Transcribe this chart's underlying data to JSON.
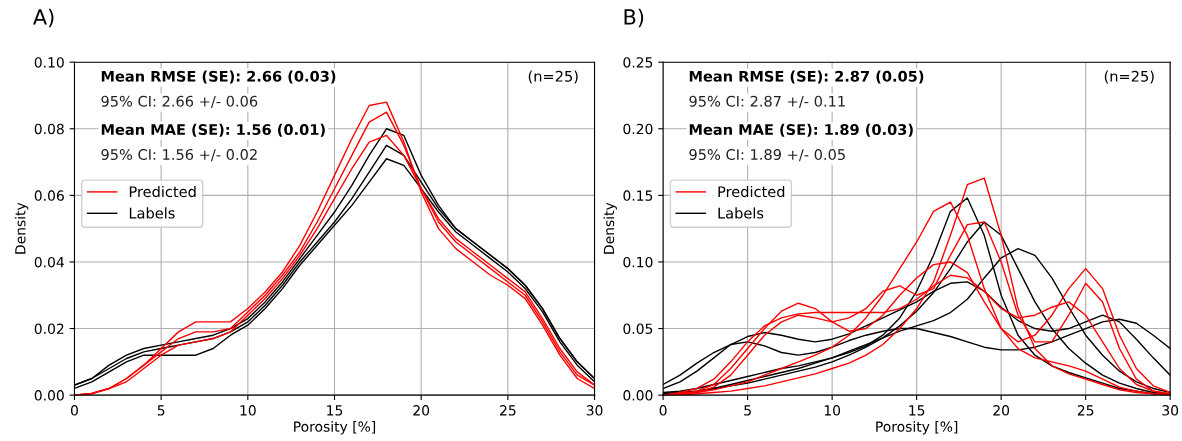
{
  "chart_data": [
    {
      "type": "line",
      "title": "A)",
      "xlabel": "Porosity [%]",
      "ylabel": "Density",
      "xlim": [
        0,
        30
      ],
      "ylim": [
        0,
        0.1
      ],
      "xticks": [
        0,
        5,
        10,
        15,
        20,
        25,
        30
      ],
      "yticks": [
        {
          "value": 0,
          "label": "0.00"
        },
        {
          "value": 0.02,
          "label": "0.02"
        },
        {
          "value": 0.04,
          "label": "0.04"
        },
        {
          "value": 0.06,
          "label": "0.06"
        },
        {
          "value": 0.08,
          "label": "0.08"
        },
        {
          "value": 0.1,
          "label": "0.10"
        }
      ],
      "grid": true,
      "legend": "center left",
      "marker": "none",
      "line_style": "solid",
      "annotations": [
        "Mean RMSE (SE): 2.66 (0.03)",
        "95% CI: 2.66 +/- 0.06",
        "Mean MAE (SE): 1.56 (0.01)",
        "95% CI: 1.56 +/- 0.02",
        "(n=25)"
      ],
      "x": [
        0,
        1,
        2,
        3,
        4,
        5,
        6,
        7,
        8,
        9,
        10,
        11,
        12,
        13,
        14,
        15,
        16,
        17,
        18,
        19,
        20,
        21,
        22,
        23,
        24,
        25,
        26,
        27,
        28,
        29,
        30
      ],
      "series": [
        {
          "name": "Labels",
          "color": "#000000",
          "values": [
            0.003,
            0.005,
            0.008,
            0.011,
            0.013,
            0.014,
            0.015,
            0.016,
            0.017,
            0.019,
            0.022,
            0.027,
            0.033,
            0.04,
            0.046,
            0.052,
            0.059,
            0.067,
            0.075,
            0.072,
            0.064,
            0.056,
            0.05,
            0.046,
            0.042,
            0.038,
            0.033,
            0.026,
            0.017,
            0.01,
            0.005
          ]
        },
        {
          "color": "#000000",
          "values": [
            0.003,
            0.005,
            0.009,
            0.012,
            0.014,
            0.015,
            0.016,
            0.017,
            0.018,
            0.02,
            0.023,
            0.028,
            0.034,
            0.041,
            0.048,
            0.055,
            0.063,
            0.072,
            0.08,
            0.078,
            0.066,
            0.057,
            0.05,
            0.046,
            0.042,
            0.038,
            0.033,
            0.026,
            0.017,
            0.01,
            0.005
          ]
        },
        {
          "color": "#000000",
          "values": [
            0.002,
            0.004,
            0.007,
            0.01,
            0.012,
            0.012,
            0.012,
            0.012,
            0.014,
            0.018,
            0.021,
            0.026,
            0.032,
            0.039,
            0.045,
            0.051,
            0.057,
            0.064,
            0.071,
            0.069,
            0.062,
            0.055,
            0.049,
            0.045,
            0.041,
            0.037,
            0.032,
            0.025,
            0.016,
            0.009,
            0.004
          ]
        },
        {
          "name": "Predicted",
          "color": "#ff0000",
          "values": [
            0.0,
            0.0005,
            0.002,
            0.005,
            0.009,
            0.013,
            0.017,
            0.019,
            0.019,
            0.02,
            0.025,
            0.03,
            0.036,
            0.043,
            0.052,
            0.062,
            0.072,
            0.082,
            0.085,
            0.075,
            0.062,
            0.052,
            0.046,
            0.042,
            0.038,
            0.034,
            0.03,
            0.022,
            0.013,
            0.006,
            0.003
          ]
        },
        {
          "color": "#ff0000",
          "values": [
            0.0,
            0.0005,
            0.002,
            0.005,
            0.009,
            0.014,
            0.019,
            0.022,
            0.022,
            0.022,
            0.026,
            0.031,
            0.037,
            0.045,
            0.055,
            0.066,
            0.077,
            0.087,
            0.088,
            0.076,
            0.061,
            0.05,
            0.044,
            0.04,
            0.036,
            0.033,
            0.029,
            0.021,
            0.012,
            0.005,
            0.002
          ]
        },
        {
          "color": "#ff0000",
          "values": [
            0.0,
            0.0005,
            0.002,
            0.004,
            0.008,
            0.012,
            0.015,
            0.016,
            0.017,
            0.019,
            0.024,
            0.029,
            0.035,
            0.042,
            0.05,
            0.059,
            0.068,
            0.076,
            0.078,
            0.072,
            0.062,
            0.053,
            0.047,
            0.043,
            0.039,
            0.035,
            0.031,
            0.023,
            0.014,
            0.007,
            0.003
          ]
        }
      ]
    },
    {
      "type": "line",
      "title": "B)",
      "xlabel": "Porosity [%]",
      "ylabel": "Density",
      "xlim": [
        0,
        30
      ],
      "ylim": [
        0,
        0.25
      ],
      "xticks": [
        0,
        5,
        10,
        15,
        20,
        25,
        30
      ],
      "yticks": [
        {
          "value": 0,
          "label": "0.00"
        },
        {
          "value": 0.05,
          "label": "0.05"
        },
        {
          "value": 0.1,
          "label": "0.10"
        },
        {
          "value": 0.15,
          "label": "0.15"
        },
        {
          "value": 0.2,
          "label": "0.20"
        },
        {
          "value": 0.25,
          "label": "0.25"
        }
      ],
      "grid": true,
      "legend": "center left",
      "marker": "none",
      "line_style": "solid",
      "annotations": [
        "Mean RMSE (SE): 2.87 (0.05)",
        "95% CI: 2.87 +/- 0.11",
        "Mean MAE (SE): 1.89 (0.03)",
        "95% CI: 1.89 +/- 0.05",
        "(n=25)"
      ],
      "x": [
        0,
        1,
        2,
        3,
        4,
        5,
        6,
        7,
        8,
        9,
        10,
        11,
        12,
        13,
        14,
        15,
        16,
        17,
        18,
        19,
        20,
        21,
        22,
        23,
        24,
        25,
        26,
        27,
        28,
        29,
        30
      ],
      "series": [
        {
          "name": "Labels",
          "color": "#000000",
          "values": [
            0.002,
            0.003,
            0.005,
            0.008,
            0.011,
            0.014,
            0.017,
            0.02,
            0.022,
            0.025,
            0.028,
            0.032,
            0.037,
            0.045,
            0.058,
            0.078,
            0.105,
            0.138,
            0.148,
            0.12,
            0.075,
            0.045,
            0.03,
            0.022,
            0.017,
            0.013,
            0.009,
            0.005,
            0.003,
            0.001,
            0.001
          ]
        },
        {
          "color": "#000000",
          "values": [
            0.001,
            0.002,
            0.003,
            0.005,
            0.008,
            0.011,
            0.014,
            0.017,
            0.02,
            0.024,
            0.028,
            0.033,
            0.038,
            0.043,
            0.048,
            0.052,
            0.056,
            0.062,
            0.072,
            0.088,
            0.103,
            0.11,
            0.105,
            0.088,
            0.066,
            0.045,
            0.03,
            0.018,
            0.01,
            0.005,
            0.002
          ]
        },
        {
          "color": "#000000",
          "values": [
            0.008,
            0.015,
            0.024,
            0.032,
            0.038,
            0.04,
            0.037,
            0.032,
            0.03,
            0.032,
            0.036,
            0.041,
            0.045,
            0.048,
            0.05,
            0.05,
            0.047,
            0.044,
            0.04,
            0.036,
            0.034,
            0.034,
            0.036,
            0.04,
            0.045,
            0.05,
            0.055,
            0.057,
            0.054,
            0.045,
            0.035
          ]
        },
        {
          "color": "#000000",
          "values": [
            0.005,
            0.01,
            0.018,
            0.028,
            0.038,
            0.044,
            0.047,
            0.045,
            0.042,
            0.04,
            0.042,
            0.046,
            0.052,
            0.058,
            0.064,
            0.07,
            0.078,
            0.084,
            0.085,
            0.078,
            0.066,
            0.056,
            0.05,
            0.048,
            0.05,
            0.055,
            0.06,
            0.055,
            0.042,
            0.028,
            0.015
          ]
        },
        {
          "color": "#000000",
          "values": [
            0.001,
            0.002,
            0.003,
            0.005,
            0.007,
            0.009,
            0.012,
            0.015,
            0.018,
            0.021,
            0.025,
            0.03,
            0.036,
            0.043,
            0.052,
            0.063,
            0.077,
            0.095,
            0.115,
            0.13,
            0.12,
            0.095,
            0.07,
            0.05,
            0.035,
            0.024,
            0.015,
            0.009,
            0.005,
            0.002,
            0.001
          ]
        },
        {
          "name": "Predicted",
          "color": "#ff0000",
          "values": [
            0,
            0,
            0.001,
            0.002,
            0.003,
            0.005,
            0.007,
            0.01,
            0.013,
            0.016,
            0.02,
            0.024,
            0.03,
            0.038,
            0.05,
            0.065,
            0.085,
            0.12,
            0.158,
            0.163,
            0.12,
            0.065,
            0.035,
            0.022,
            0.016,
            0.012,
            0.008,
            0.004,
            0.002,
            0.001,
            0
          ]
        },
        {
          "color": "#ff0000",
          "values": [
            0,
            0.001,
            0.002,
            0.004,
            0.007,
            0.01,
            0.015,
            0.02,
            0.025,
            0.03,
            0.036,
            0.045,
            0.058,
            0.075,
            0.095,
            0.115,
            0.138,
            0.145,
            0.12,
            0.08,
            0.05,
            0.035,
            0.028,
            0.025,
            0.022,
            0.018,
            0.012,
            0.006,
            0.003,
            0.001,
            0
          ]
        },
        {
          "color": "#ff0000",
          "values": [
            0,
            0.001,
            0.003,
            0.008,
            0.02,
            0.035,
            0.05,
            0.063,
            0.069,
            0.065,
            0.055,
            0.048,
            0.05,
            0.06,
            0.075,
            0.088,
            0.098,
            0.1,
            0.092,
            0.07,
            0.05,
            0.04,
            0.045,
            0.06,
            0.08,
            0.095,
            0.08,
            0.045,
            0.02,
            0.007,
            0.002
          ]
        },
        {
          "color": "#ff0000",
          "values": [
            0,
            0.001,
            0.002,
            0.006,
            0.015,
            0.03,
            0.045,
            0.055,
            0.06,
            0.058,
            0.055,
            0.058,
            0.065,
            0.078,
            0.082,
            0.075,
            0.08,
            0.105,
            0.128,
            0.13,
            0.1,
            0.06,
            0.04,
            0.04,
            0.06,
            0.084,
            0.07,
            0.035,
            0.012,
            0.003,
            0.001
          ]
        },
        {
          "color": "#ff0000",
          "values": [
            0,
            0.002,
            0.005,
            0.012,
            0.025,
            0.04,
            0.052,
            0.058,
            0.061,
            0.062,
            0.062,
            0.062,
            0.062,
            0.062,
            0.065,
            0.072,
            0.082,
            0.09,
            0.088,
            0.078,
            0.065,
            0.058,
            0.06,
            0.066,
            0.07,
            0.06,
            0.04,
            0.02,
            0.008,
            0.003,
            0.001
          ]
        }
      ]
    }
  ]
}
